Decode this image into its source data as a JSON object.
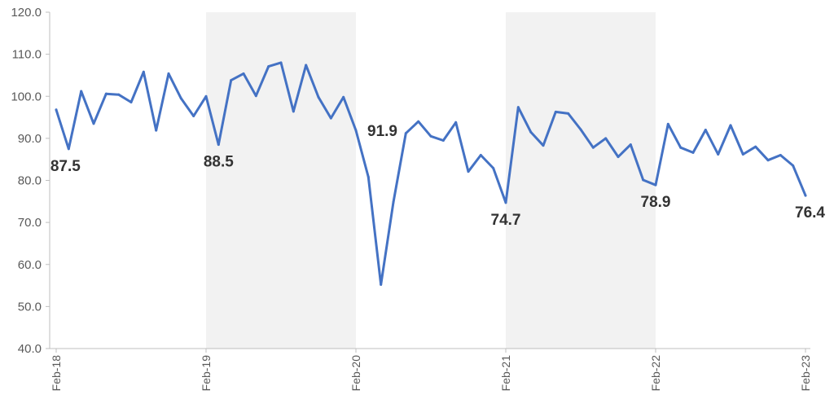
{
  "chart_data": {
    "type": "line",
    "title": "",
    "xlabel": "",
    "ylabel": "",
    "ylim": [
      40,
      120
    ],
    "yticks": [
      "40.0",
      "50.0",
      "60.0",
      "70.0",
      "80.0",
      "90.0",
      "100.0",
      "110.0",
      "120.0"
    ],
    "x_tick_labels": [
      {
        "label": "Feb-18",
        "index": 0
      },
      {
        "label": "Feb-19",
        "index": 12
      },
      {
        "label": "Feb-20",
        "index": 24
      },
      {
        "label": "Feb-21",
        "index": 36
      },
      {
        "label": "Feb-22",
        "index": 48
      },
      {
        "label": "Feb-23",
        "index": 60
      }
    ],
    "shaded_periods": [
      {
        "from": "Feb-19",
        "to": "Feb-20"
      },
      {
        "from": "Feb-21",
        "to": "Feb-22"
      }
    ],
    "grid": false,
    "series_color": "#4472c4",
    "band_color": "#f2f2f2",
    "series": [
      {
        "name": "",
        "x": [
          "Feb-18",
          "Mar-18",
          "Apr-18",
          "May-18",
          "Jun-18",
          "Jul-18",
          "Aug-18",
          "Sep-18",
          "Oct-18",
          "Nov-18",
          "Dec-18",
          "Jan-19",
          "Feb-19",
          "Mar-19",
          "Apr-19",
          "May-19",
          "Jun-19",
          "Jul-19",
          "Aug-19",
          "Sep-19",
          "Oct-19",
          "Nov-19",
          "Dec-19",
          "Jan-20",
          "Feb-20",
          "Mar-20",
          "Apr-20",
          "May-20",
          "Jun-20",
          "Jul-20",
          "Aug-20",
          "Sep-20",
          "Oct-20",
          "Nov-20",
          "Dec-20",
          "Jan-21",
          "Feb-21",
          "Mar-21",
          "Apr-21",
          "May-21",
          "Jun-21",
          "Jul-21",
          "Aug-21",
          "Sep-21",
          "Oct-21",
          "Nov-21",
          "Dec-21",
          "Jan-22",
          "Feb-22",
          "Mar-22",
          "Apr-22",
          "May-22",
          "Jun-22",
          "Jul-22",
          "Aug-22",
          "Sep-22",
          "Oct-22",
          "Nov-22",
          "Dec-22",
          "Jan-23",
          "Feb-23"
        ],
        "values": [
          96.8,
          87.5,
          101.2,
          93.5,
          100.6,
          100.4,
          98.6,
          105.8,
          91.9,
          105.4,
          99.5,
          95.3,
          100.0,
          88.5,
          103.8,
          105.4,
          100.1,
          107.1,
          108.0,
          96.4,
          107.4,
          99.8,
          94.8,
          99.8,
          91.9,
          80.8,
          55.2,
          74.8,
          91.2,
          94.0,
          90.5,
          89.5,
          93.8,
          82.1,
          86.0,
          82.9,
          74.7,
          97.4,
          91.5,
          88.3,
          96.3,
          95.9,
          92.1,
          87.8,
          90.0,
          85.6,
          88.5,
          80.1,
          78.9,
          93.4,
          87.8,
          86.6,
          92.0,
          86.2,
          93.1,
          86.2,
          88.0,
          84.8,
          86.0,
          83.5,
          76.4
        ]
      }
    ],
    "annotations": [
      {
        "text": "87.5",
        "index": 1
      },
      {
        "text": "88.5",
        "index": 13
      },
      {
        "text": "91.9",
        "index": 24
      },
      {
        "text": "74.7",
        "index": 36
      },
      {
        "text": "78.9",
        "index": 48
      },
      {
        "text": "76.4",
        "index": 60
      }
    ]
  }
}
